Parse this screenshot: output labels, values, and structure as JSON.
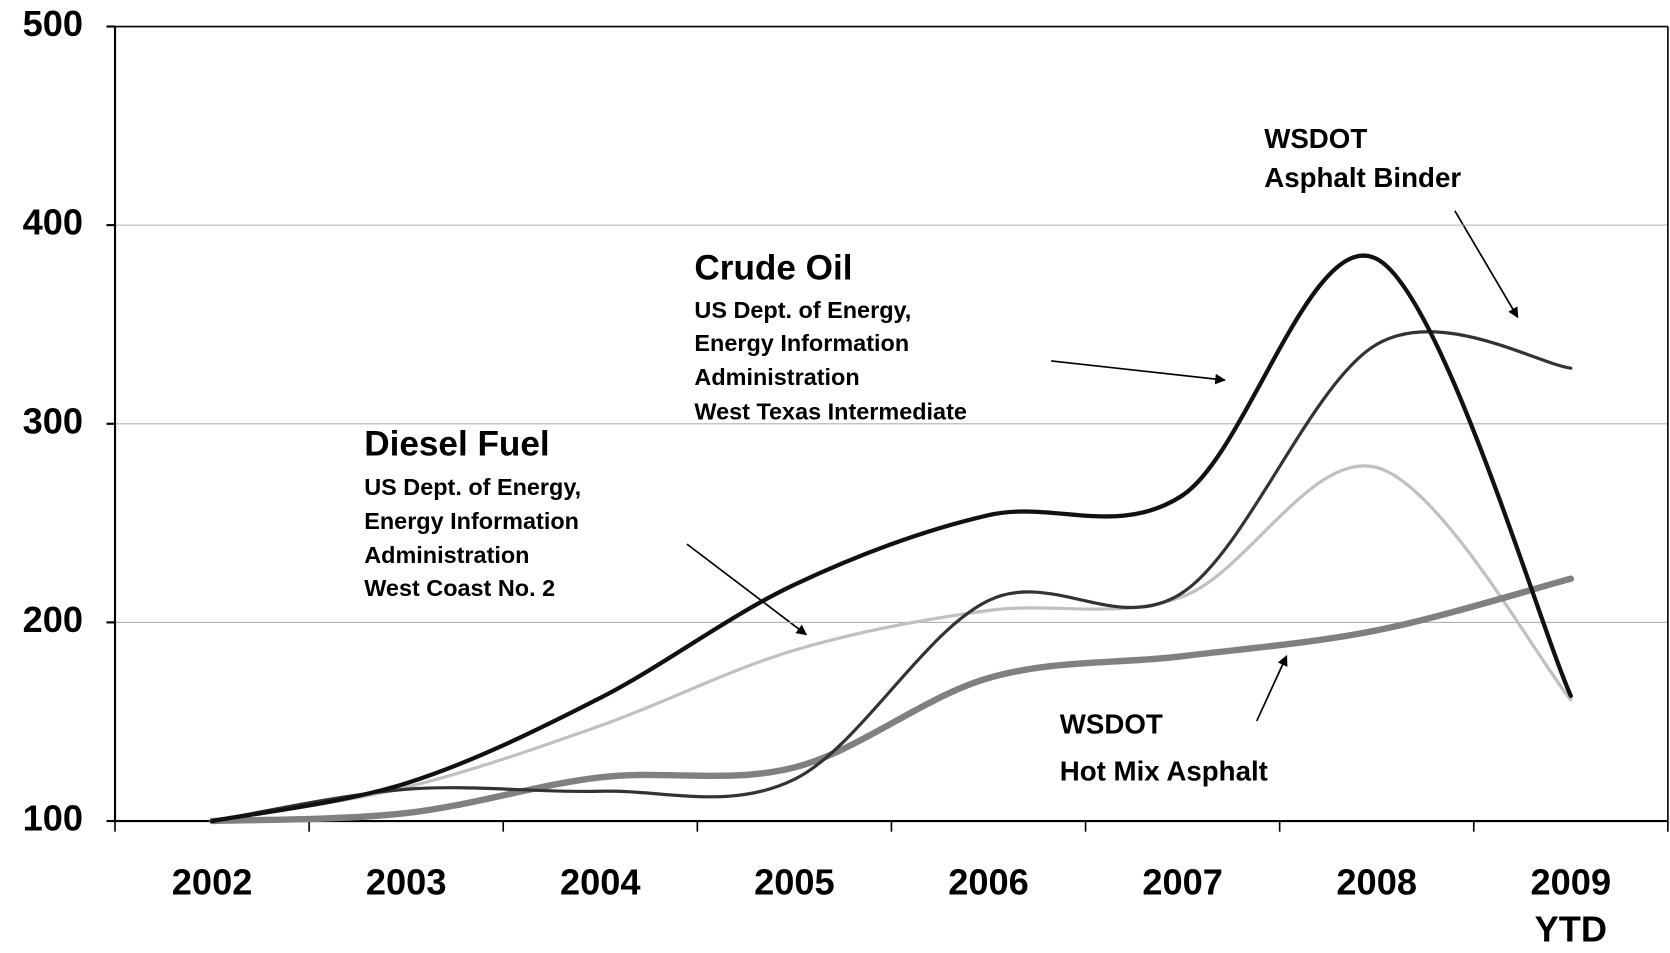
{
  "chart_data": {
    "type": "line",
    "categories": [
      "2002",
      "2003",
      "2004",
      "2005",
      "2006",
      "2007",
      "2008",
      "2009 YTD"
    ],
    "series": [
      {
        "color": "#c0c0c0",
        "width": 3,
        "values": [
          100,
          117,
          148,
          186,
          206,
          213,
          278,
          161
        ]
      },
      {
        "color": "#808080",
        "width": 6,
        "values": [
          100,
          104,
          122,
          127,
          172,
          183,
          196,
          222
        ]
      },
      {
        "color": "#333333",
        "width": 3,
        "values": [
          100,
          116,
          115,
          121,
          211,
          215,
          340,
          328
        ]
      },
      {
        "color": "#111111",
        "width": 4,
        "values": [
          100,
          119,
          162,
          219,
          254,
          264,
          383,
          163
        ]
      }
    ],
    "ylim": [
      100,
      500
    ],
    "yticks": [
      100,
      200,
      300,
      400,
      500
    ],
    "grid": true,
    "annotations": [
      {
        "title": "Crude Oil",
        "lines": [
          "US Dept. of Energy,",
          "Energy Information",
          "Administration",
          "West Texas Intermediate"
        ]
      },
      {
        "title": "Diesel Fuel",
        "lines": [
          "US Dept. of Energy,",
          "Energy Information",
          "Administration",
          "West Coast No. 2"
        ]
      },
      {
        "lines": [
          "WSDOT",
          "Asphalt Binder"
        ]
      },
      {
        "lines": [
          "WSDOT",
          "Hot Mix Asphalt"
        ]
      }
    ]
  }
}
